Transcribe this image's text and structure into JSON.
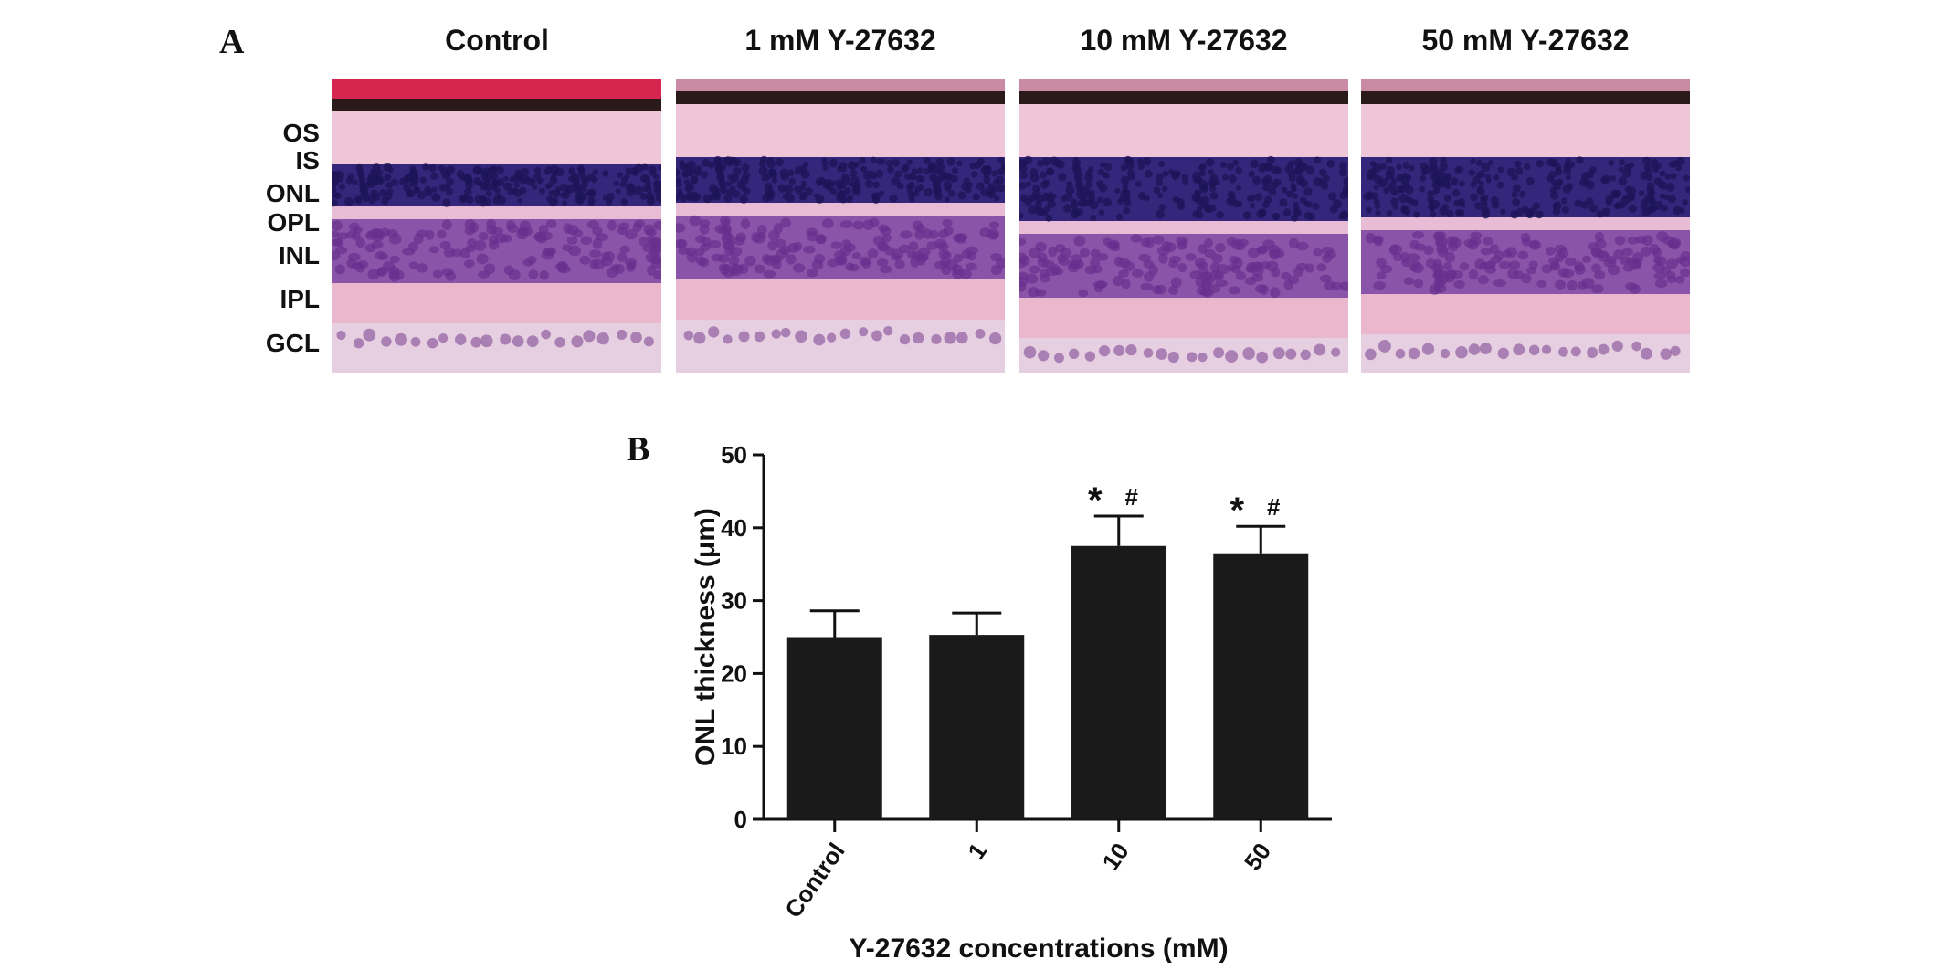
{
  "panelA": {
    "letter": "A",
    "columns": [
      "Control",
      "1 mM Y-27632",
      "10 mM Y-27632",
      "50 mM Y-27632"
    ],
    "layers": [
      "OS",
      "IS",
      "ONL",
      "OPL",
      "INL",
      "IPL",
      "GCL"
    ],
    "colors": {
      "choroid": "#d6264f",
      "os": "#efc6d8",
      "onl": "#34267a",
      "opl": "#e8bcd4",
      "inl": "#8a55a8",
      "ipl": "#eab7cc",
      "gcl": "#e6cfe0"
    }
  },
  "panelB": {
    "letter": "B"
  },
  "chart_data": {
    "type": "bar",
    "categories": [
      "Control",
      "1",
      "10",
      "50"
    ],
    "values": [
      25,
      25.3,
      37.5,
      36.5
    ],
    "errors": [
      3.6,
      3.0,
      4.1,
      3.7
    ],
    "annotations": [
      {
        "category": "10",
        "marks": [
          "*",
          "#"
        ]
      },
      {
        "category": "50",
        "marks": [
          "*",
          "#"
        ]
      }
    ],
    "xlabel": "Y-27632 concentrations (mM)",
    "ylabel": "ONL thickness (μm)",
    "ylim": [
      0,
      50
    ],
    "yticks": [
      0,
      10,
      20,
      30,
      40,
      50
    ],
    "bar_color": "#1a1a1a",
    "grid": false
  }
}
